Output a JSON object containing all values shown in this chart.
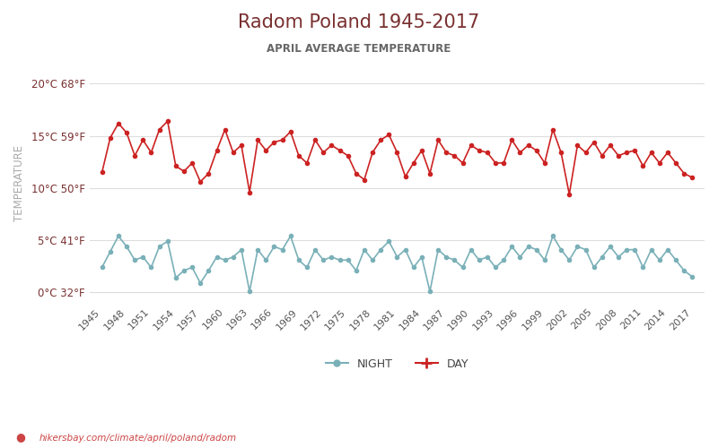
{
  "title": "Radom Poland 1945-2017",
  "subtitle": "APRIL AVERAGE TEMPERATURE",
  "ylabel": "TEMPERATURE",
  "footer": "hikersbay.com/climate/april/poland/radom",
  "day_color": "#cc2222",
  "night_color": "#7ab0b8",
  "title_color": "#7a3030",
  "subtitle_color": "#666666",
  "grid_color": "#dddddd",
  "bg_color": "#ffffff",
  "ylim": [
    -1,
    22
  ],
  "yticks_c": [
    0,
    5,
    10,
    15,
    20
  ],
  "yticks_f": [
    32,
    41,
    50,
    59,
    68
  ],
  "xtick_years": [
    1945,
    1948,
    1951,
    1954,
    1957,
    1960,
    1963,
    1966,
    1969,
    1972,
    1975,
    1978,
    1981,
    1984,
    1987,
    1990,
    1993,
    1996,
    1999,
    2002,
    2005,
    2008,
    2011,
    2014,
    2017
  ],
  "day_temps": [
    11.5,
    14.8,
    16.2,
    15.3,
    13.1,
    14.6,
    13.4,
    15.6,
    16.4,
    12.1,
    11.6,
    12.4,
    10.6,
    11.4,
    13.6,
    15.6,
    13.4,
    14.1,
    9.6,
    14.6,
    13.6,
    14.4,
    14.6,
    15.4,
    13.1,
    12.4,
    14.6,
    13.4,
    14.1,
    13.6,
    13.1,
    11.4,
    10.8,
    13.4,
    14.6,
    15.1,
    13.4,
    11.1,
    12.4,
    13.6,
    11.4,
    14.6,
    13.4,
    13.1,
    12.4,
    14.1,
    13.6,
    13.4,
    12.4,
    12.4,
    14.6,
    13.4,
    14.1,
    13.6,
    12.4,
    15.6,
    13.4,
    9.4,
    14.1,
    13.4,
    14.4,
    13.1,
    14.1,
    13.1,
    13.4,
    13.6,
    12.1,
    13.4,
    12.4,
    13.4,
    12.4,
    11.4,
    11.0
  ],
  "night_temps": [
    2.4,
    3.9,
    5.4,
    4.4,
    3.1,
    3.4,
    2.4,
    4.4,
    4.9,
    1.4,
    2.1,
    2.4,
    0.9,
    2.1,
    3.4,
    3.1,
    3.4,
    4.1,
    0.1,
    4.1,
    3.1,
    4.4,
    4.1,
    5.4,
    3.1,
    2.4,
    4.1,
    3.1,
    3.4,
    3.1,
    3.1,
    2.1,
    4.1,
    3.1,
    4.1,
    4.9,
    3.4,
    4.1,
    2.4,
    3.4,
    0.1,
    4.1,
    3.4,
    3.1,
    2.4,
    4.1,
    3.1,
    3.4,
    2.4,
    3.1,
    4.4,
    3.4,
    4.4,
    4.1,
    3.1,
    5.4,
    4.1,
    3.1,
    4.4,
    4.1,
    2.4,
    3.4,
    4.4,
    3.4,
    4.1,
    4.1,
    2.4,
    4.1,
    3.1,
    4.1,
    3.1,
    2.1,
    1.5
  ]
}
